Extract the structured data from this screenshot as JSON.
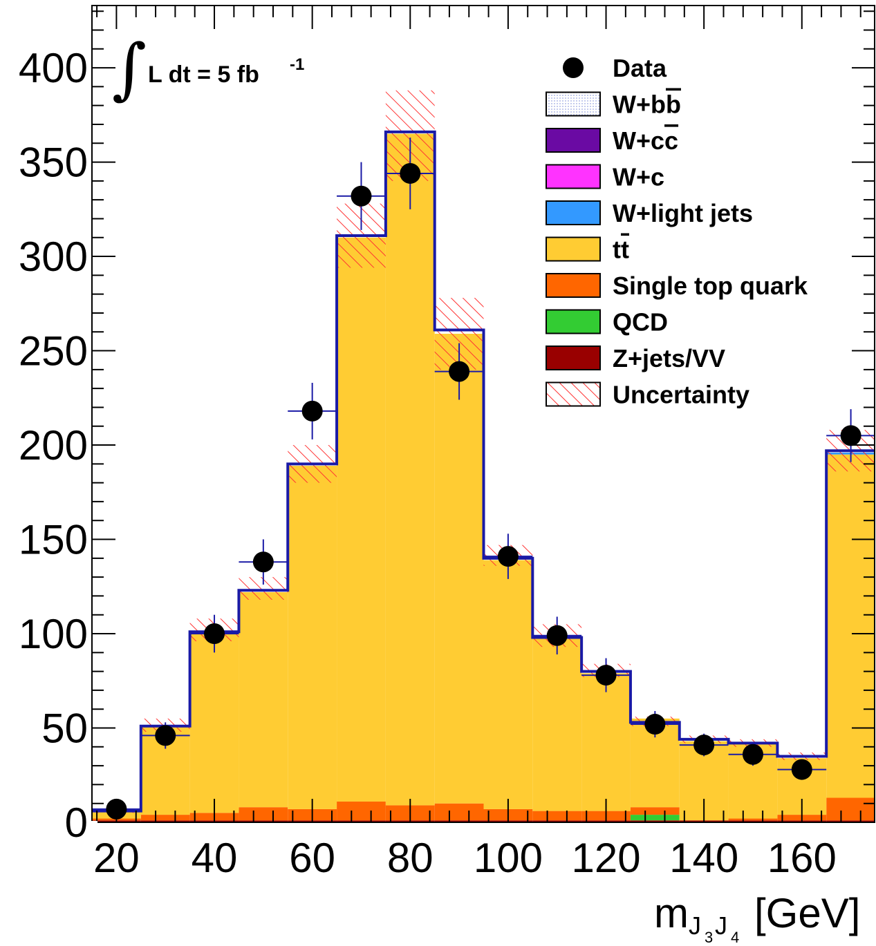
{
  "chart_data": {
    "type": "bar",
    "stacked": true,
    "histogram": true,
    "title": "",
    "xlabel": {
      "text": "m",
      "subscript_main": "J",
      "subscript_a": "3",
      "subscript_b": "J",
      "subscript_c": "4",
      "unit": "[GeV]"
    },
    "ylabel": "",
    "xlim": [
      15,
      175
    ],
    "ylim": [
      0,
      433
    ],
    "x_ticks": [
      20,
      40,
      60,
      80,
      100,
      120,
      140,
      160
    ],
    "y_ticks": [
      0,
      50,
      100,
      150,
      200,
      250,
      300,
      350,
      400
    ],
    "bin_edges": [
      15,
      25,
      35,
      45,
      55,
      65,
      75,
      85,
      95,
      105,
      115,
      125,
      135,
      145,
      155,
      165,
      175
    ],
    "luminosity": {
      "integral_symbol": "∫",
      "text": "L dt = 5 fb",
      "superscript": "-1"
    },
    "legend": {
      "placement": "top-right",
      "entries": [
        {
          "key": "data",
          "label": "Data",
          "color": "#000000"
        },
        {
          "key": "wbb",
          "label": "W+bb",
          "overline": "b",
          "color": "#eef0fb"
        },
        {
          "key": "wcc",
          "label": "W+cc",
          "overline": "c",
          "color": "#6a0aa3"
        },
        {
          "key": "wc",
          "label": "W+c",
          "color": "#ff33ff"
        },
        {
          "key": "wlight",
          "label": "W+light jets",
          "color": "#3399ff"
        },
        {
          "key": "ttbar",
          "label": "tt",
          "overline": "t",
          "color": "#ffcc33"
        },
        {
          "key": "singletop",
          "label": "Single top quark",
          "color": "#ff6600"
        },
        {
          "key": "qcd",
          "label": "QCD",
          "color": "#33cc33"
        },
        {
          "key": "zjets",
          "label": "Z+jets/VV",
          "color": "#990000"
        },
        {
          "key": "unc",
          "label": "Uncertainty",
          "color": "#ff3333"
        }
      ]
    },
    "series": [
      {
        "name": "Z+jets/VV",
        "key": "zjets",
        "color": "#990000",
        "values": [
          1,
          1,
          1,
          1,
          1,
          1,
          1,
          1,
          1,
          1,
          1,
          1,
          1,
          1,
          1,
          1
        ]
      },
      {
        "name": "QCD",
        "key": "qcd",
        "color": "#33cc33",
        "values": [
          0,
          0,
          0,
          0,
          0,
          0,
          0,
          0,
          0,
          0,
          0,
          3,
          0,
          0,
          0,
          0
        ]
      },
      {
        "name": "Single top quark",
        "key": "singletop",
        "color": "#ff6600",
        "values": [
          1,
          3,
          4,
          7,
          6,
          10,
          8,
          9,
          6,
          5,
          5,
          4,
          0,
          1,
          3,
          12
        ]
      },
      {
        "name": "tt",
        "key": "ttbar",
        "color": "#ffcc33",
        "values": [
          4,
          47,
          96,
          114,
          182,
          299,
          356,
          249,
          132,
          92,
          73,
          47,
          42,
          40,
          30,
          182
        ]
      },
      {
        "name": "W+light jets",
        "key": "wlight",
        "color": "#3399ff",
        "values": [
          0,
          0,
          0,
          0,
          0,
          0,
          0,
          0,
          0,
          0,
          0,
          0,
          0,
          0,
          0,
          1
        ]
      },
      {
        "name": "W+c",
        "key": "wc",
        "color": "#ff33ff",
        "values": [
          0,
          0,
          0,
          0,
          0,
          0,
          0,
          0,
          0,
          0,
          0,
          0,
          0,
          0,
          0,
          0
        ]
      },
      {
        "name": "W+cc",
        "key": "wcc",
        "color": "#6a0aa3",
        "values": [
          0,
          0,
          0,
          0,
          0,
          0,
          0,
          0,
          0,
          0,
          0,
          0,
          0,
          0,
          0,
          0
        ]
      },
      {
        "name": "W+bb",
        "key": "wbb",
        "color": "#eef0fb",
        "values": [
          0,
          0,
          0,
          0,
          0,
          0,
          0,
          0,
          0,
          0,
          0,
          0,
          0,
          0,
          0,
          0
        ]
      }
    ],
    "total": [
      6,
      51,
      101,
      123,
      190,
      311,
      366,
      261,
      140,
      98,
      80,
      53,
      44,
      42,
      35,
      197
    ],
    "uncertainty": {
      "lower": [
        5,
        48,
        96,
        118,
        180,
        294,
        340,
        240,
        136,
        93,
        77,
        51,
        42,
        40,
        33,
        186
      ],
      "upper": [
        7,
        55,
        108,
        130,
        200,
        328,
        388,
        278,
        147,
        105,
        84,
        56,
        46,
        44,
        37,
        208
      ]
    },
    "data": {
      "name": "Data",
      "x": [
        20,
        30,
        40,
        50,
        60,
        70,
        80,
        90,
        100,
        110,
        120,
        130,
        140,
        150,
        160,
        170
      ],
      "y": [
        7,
        46,
        100,
        138,
        218,
        332,
        344,
        239,
        141,
        99,
        78,
        52,
        41,
        36,
        28,
        205
      ],
      "yerr": [
        3,
        7,
        10,
        12,
        15,
        18,
        19,
        15,
        12,
        10,
        9,
        7,
        6,
        6,
        5,
        14
      ]
    },
    "colors": {
      "total_outline": "#1a1aa6",
      "data_errorbar": "#1a1aa6",
      "hatch": "#ff3333"
    }
  }
}
